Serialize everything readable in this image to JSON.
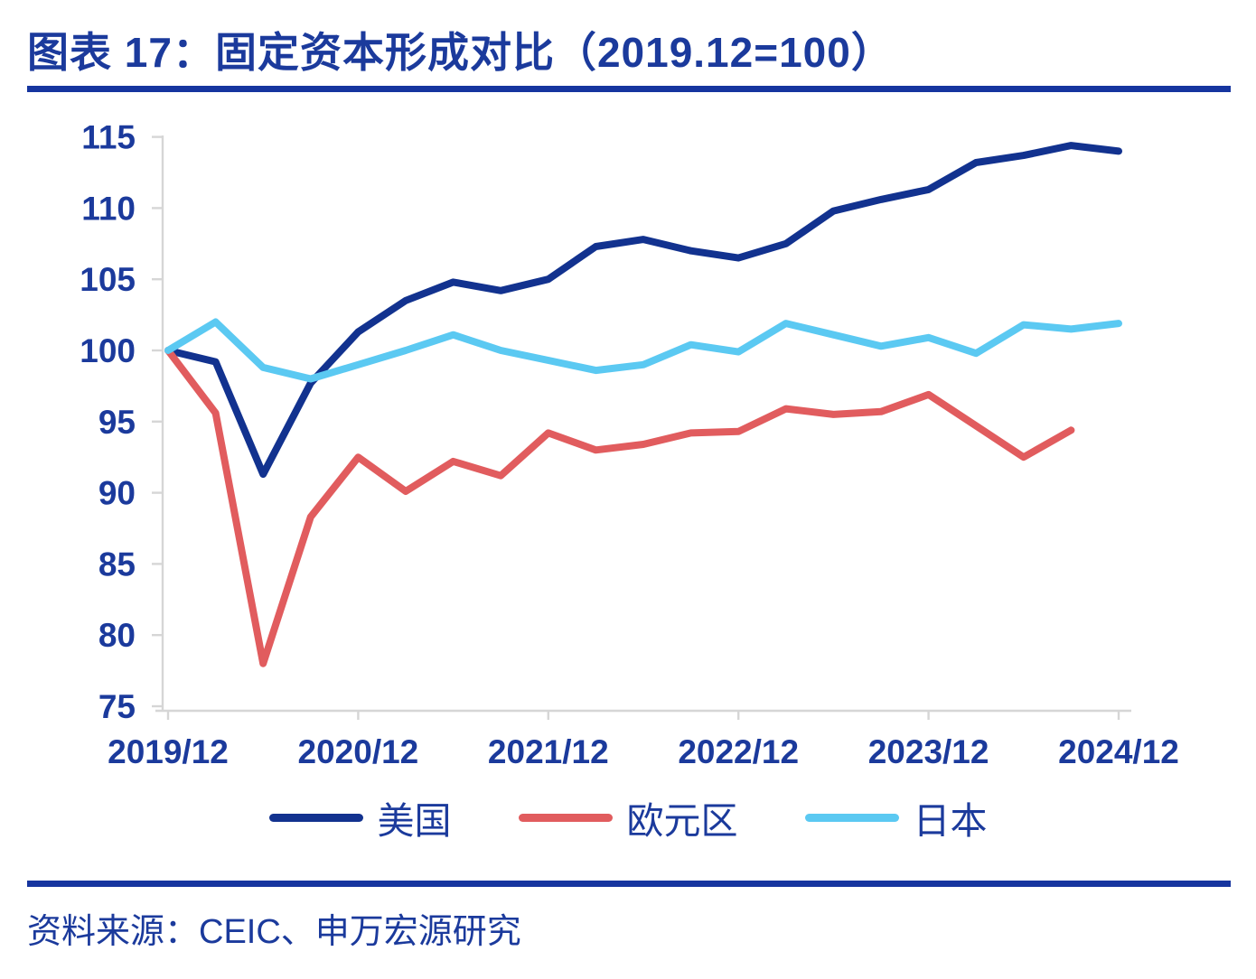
{
  "page": {
    "title": "图表 17：固定资本形成对比（2019.12=100）",
    "source_note": "资料来源：CEIC、申万宏源研究"
  },
  "colors": {
    "navy_text": "#1B3A9C",
    "rule_navy": "#16359F",
    "axis_gray": "#D6D6D6",
    "us_line": "#12328F",
    "eurozone_line": "#E15C5E",
    "japan_line": "#5BC9F2"
  },
  "chart_data": {
    "type": "line",
    "title": "图表 17：固定资本形成对比（2019.12=100）",
    "xlabel": "",
    "ylabel": "",
    "ylim": [
      75,
      115
    ],
    "y_ticks": [
      75,
      80,
      85,
      90,
      95,
      100,
      105,
      110,
      115
    ],
    "grid": false,
    "legend_position": "bottom",
    "x": [
      "2019/12",
      "2020/03",
      "2020/06",
      "2020/09",
      "2020/12",
      "2021/03",
      "2021/06",
      "2021/09",
      "2021/12",
      "2022/03",
      "2022/06",
      "2022/09",
      "2022/12",
      "2023/03",
      "2023/06",
      "2023/09",
      "2023/12",
      "2024/03",
      "2024/06",
      "2024/09",
      "2024/12"
    ],
    "x_tick_labels": [
      "2019/12",
      "2020/12",
      "2021/12",
      "2022/12",
      "2023/12",
      "2024/12"
    ],
    "series": [
      {
        "name": "美国",
        "color_key": "us_line",
        "values": [
          100,
          99.2,
          91.3,
          97.7,
          101.3,
          103.5,
          104.8,
          104.2,
          105.0,
          107.3,
          107.8,
          107.0,
          106.5,
          107.5,
          109.8,
          110.6,
          111.3,
          113.2,
          113.7,
          114.4,
          114.0
        ]
      },
      {
        "name": "欧元区",
        "color_key": "eurozone_line",
        "values": [
          100,
          95.6,
          78.0,
          88.3,
          92.5,
          90.1,
          92.2,
          91.2,
          94.2,
          93.0,
          93.4,
          94.2,
          94.3,
          95.9,
          95.5,
          95.7,
          96.9,
          94.7,
          92.5,
          94.4,
          null
        ]
      },
      {
        "name": "日本",
        "color_key": "japan_line",
        "values": [
          100,
          102.0,
          98.8,
          98.0,
          99.0,
          100.0,
          101.1,
          100.0,
          99.3,
          98.6,
          99.0,
          100.4,
          99.9,
          101.9,
          101.1,
          100.3,
          100.9,
          99.8,
          101.8,
          101.5,
          101.9
        ]
      }
    ]
  }
}
